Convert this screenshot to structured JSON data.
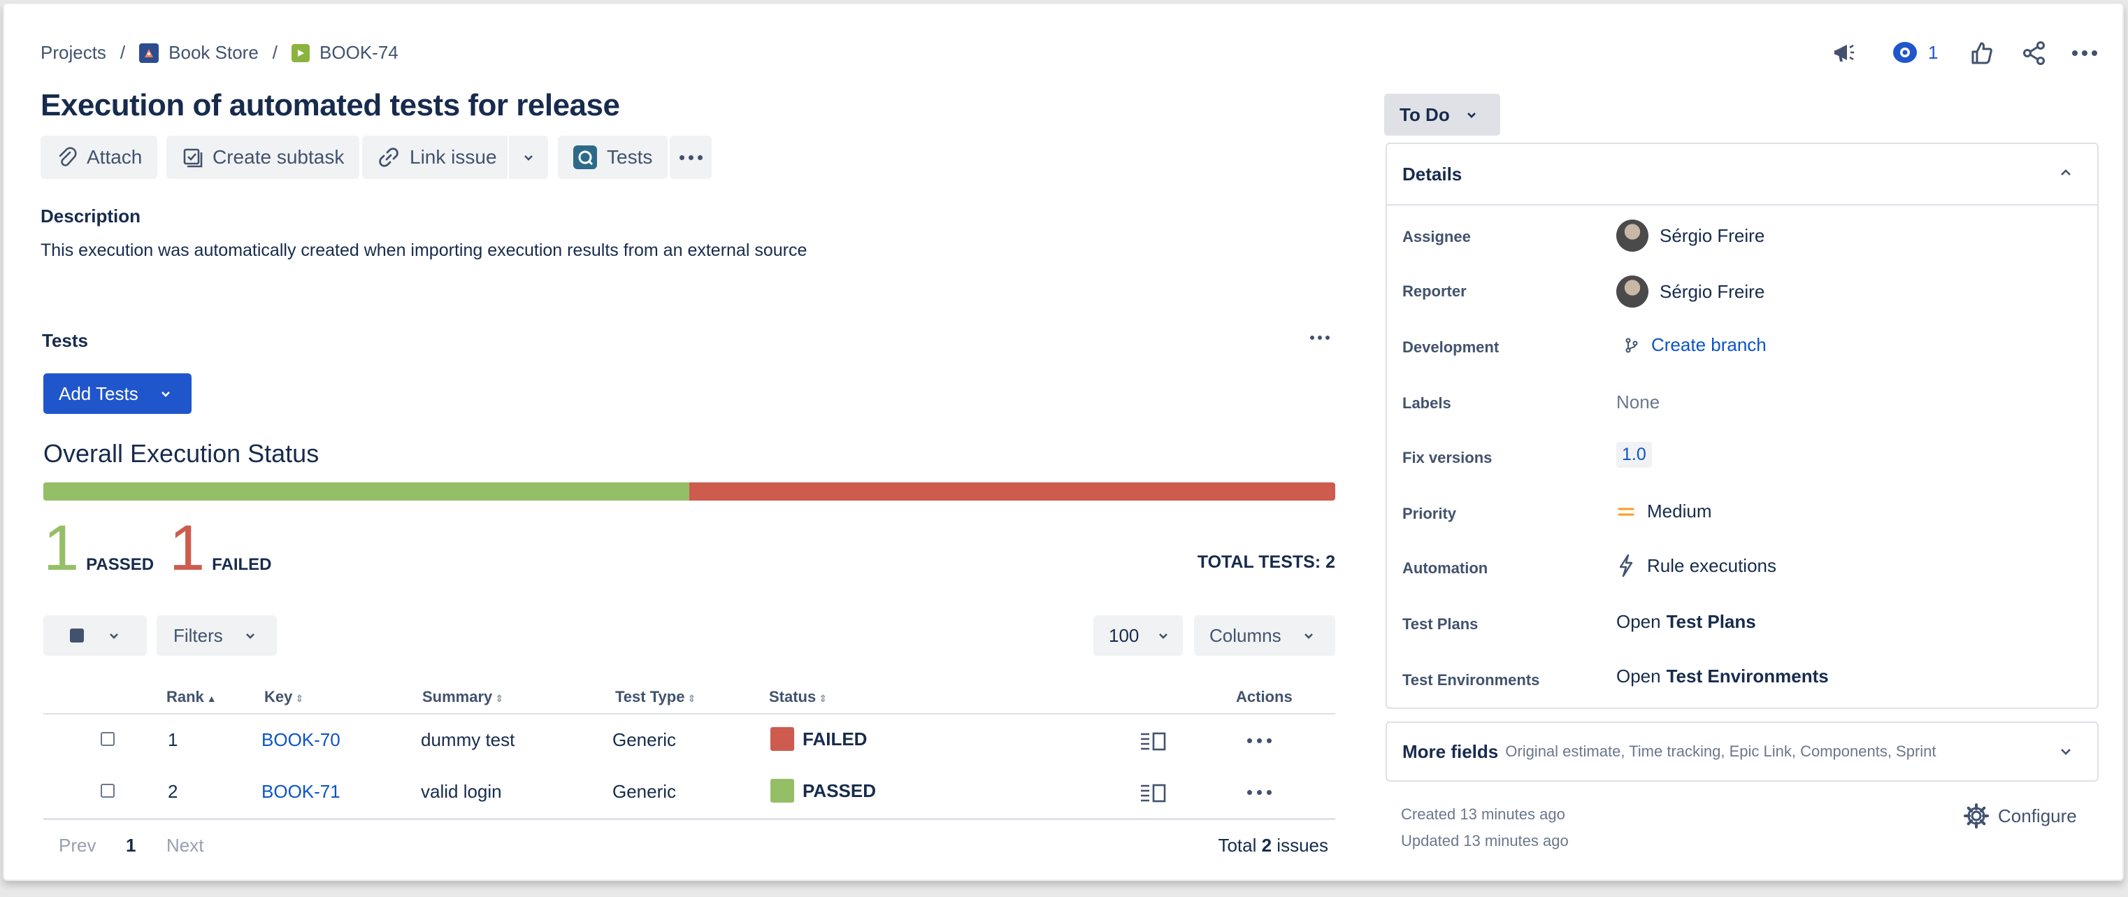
{
  "breadcrumb": {
    "items": [
      {
        "label": "Projects"
      },
      {
        "label": "Book Store"
      },
      {
        "label": "BOOK-74"
      }
    ],
    "separator": "/"
  },
  "header": {
    "watch_count": "1"
  },
  "issue": {
    "title": "Execution of automated tests for release"
  },
  "toolbar": {
    "attach": "Attach",
    "create_subtask": "Create subtask",
    "link_issue": "Link issue",
    "tests": "Tests"
  },
  "description": {
    "heading": "Description",
    "text": "This execution was automatically created when importing execution results from an external source"
  },
  "tests_section": {
    "heading": "Tests",
    "add_tests": "Add Tests",
    "overall_title": "Overall Execution Status",
    "passed_fraction": 0.5,
    "passed_count": "1",
    "passed_label": "PASSED",
    "failed_count": "1",
    "failed_label": "FAILED",
    "total": "TOTAL TESTS: 2",
    "filters": "Filters",
    "page_size": "100",
    "columns": "Columns",
    "table": {
      "headers": {
        "rank": "Rank",
        "key": "Key",
        "summary": "Summary",
        "test_type": "Test Type",
        "status": "Status",
        "actions": "Actions"
      },
      "rows": [
        {
          "rank": "1",
          "key": "BOOK-70",
          "summary": "dummy test",
          "test_type": "Generic",
          "status": "FAILED",
          "status_color": "#cd5b4e"
        },
        {
          "rank": "2",
          "key": "BOOK-71",
          "summary": "valid login",
          "test_type": "Generic",
          "status": "PASSED",
          "status_color": "#95bf66"
        }
      ]
    },
    "pagination": {
      "prev": "Prev",
      "current": "1",
      "next": "Next",
      "total_prefix": "Total",
      "total_count": "2",
      "total_suffix": "issues"
    }
  },
  "status_button": "To Do",
  "details": {
    "heading": "Details",
    "assignee_label": "Assignee",
    "assignee": "Sérgio Freire",
    "reporter_label": "Reporter",
    "reporter": "Sérgio Freire",
    "development_label": "Development",
    "development": "Create branch",
    "labels_label": "Labels",
    "labels": "None",
    "fix_versions_label": "Fix versions",
    "fix_versions": "1.0",
    "priority_label": "Priority",
    "priority": "Medium",
    "automation_label": "Automation",
    "automation": "Rule executions",
    "test_plans_label": "Test Plans",
    "test_plans_prefix": "Open",
    "test_plans_link": "Test Plans",
    "test_envs_label": "Test Environments",
    "test_envs_prefix": "Open",
    "test_envs_link": "Test Environments"
  },
  "more_fields": {
    "label": "More fields",
    "hint": "Original estimate, Time tracking, Epic Link, Components, Sprint"
  },
  "footer": {
    "created": "Created 13 minutes ago",
    "updated": "Updated 13 minutes ago",
    "configure": "Configure"
  },
  "colors": {
    "passed": "#95bf66",
    "failed": "#cd5b4e",
    "primary": "#1f56cc",
    "link": "#0c53c9"
  }
}
